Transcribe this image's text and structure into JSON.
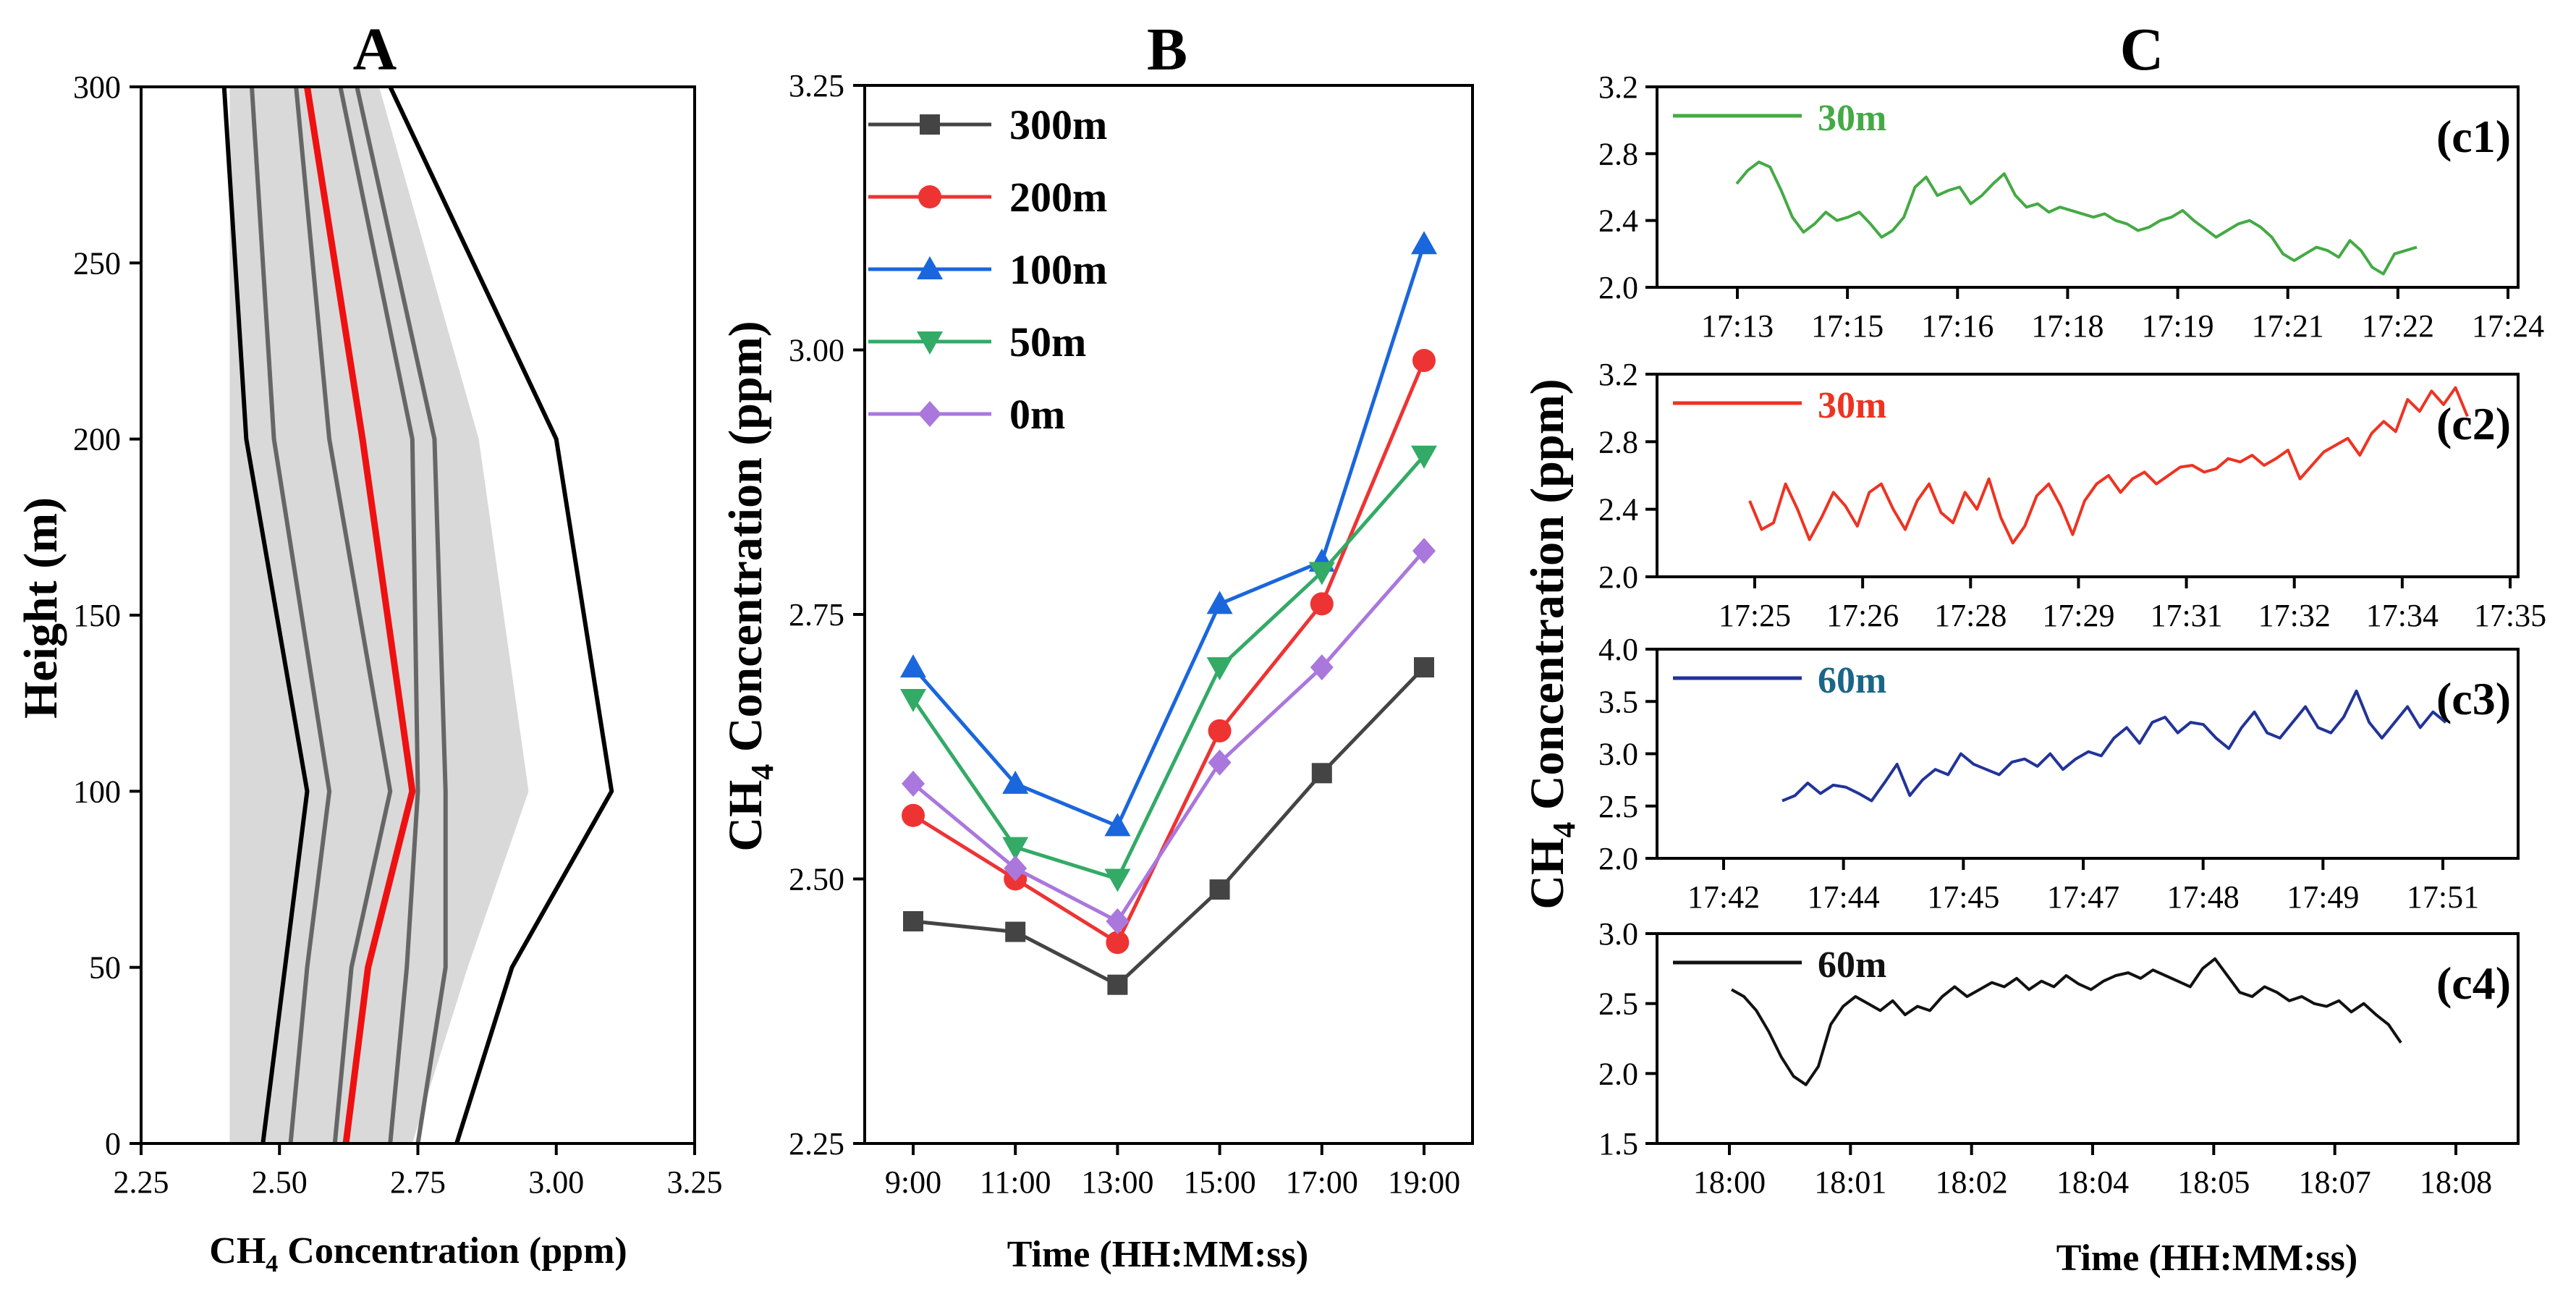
{
  "colors": {
    "red": "#ee1111",
    "dark": "#444444",
    "gray_line": "#666666",
    "band": "#d9d9d9",
    "s300": "#444444",
    "s200": "#ee3333",
    "s100": "#1a66dd",
    "s50": "#33aa66",
    "s0": "#aa77dd",
    "c1": "#44aa44",
    "c2": "#ee3322",
    "c3": "#223399",
    "c4": "#111111",
    "c3_tag": "#1a6688"
  },
  "chart_data": [
    {
      "id": "A",
      "type": "line",
      "panel_label": "A",
      "xlabel_main": "CH",
      "xlabel_sub": "4",
      "xlabel_rest": " Concentration (ppm)",
      "ylabel": "Height (m)",
      "xlim": [
        2.25,
        3.25
      ],
      "ylim": [
        0,
        300
      ],
      "x_ticks": [
        "2.25",
        "2.50",
        "2.75",
        "3.00",
        "3.25"
      ],
      "y_ticks": [
        "0",
        "50",
        "100",
        "150",
        "200",
        "250",
        "300"
      ],
      "heights": [
        0,
        50,
        100,
        200,
        300
      ],
      "band": {
        "left": [
          2.41,
          2.41,
          2.41,
          2.41,
          2.41
        ],
        "right": [
          2.74,
          2.84,
          2.95,
          2.86,
          2.68
        ]
      },
      "series": [
        {
          "name": "outer-left",
          "color": "#000000",
          "values": [
            2.47,
            2.51,
            2.55,
            2.44,
            2.4
          ]
        },
        {
          "name": "inner-1",
          "color": "#666666",
          "values": [
            2.52,
            2.55,
            2.59,
            2.49,
            2.45
          ]
        },
        {
          "name": "inner-2",
          "color": "#666666",
          "values": [
            2.6,
            2.63,
            2.7,
            2.59,
            2.53
          ]
        },
        {
          "name": "mean",
          "color": "#ee1111",
          "values": [
            2.62,
            2.66,
            2.74,
            2.65,
            2.55
          ]
        },
        {
          "name": "inner-3",
          "color": "#666666",
          "values": [
            2.7,
            2.73,
            2.75,
            2.74,
            2.61
          ]
        },
        {
          "name": "inner-4",
          "color": "#666666",
          "values": [
            2.75,
            2.8,
            2.8,
            2.78,
            2.64
          ]
        },
        {
          "name": "outer-right",
          "color": "#000000",
          "values": [
            2.82,
            2.92,
            3.1,
            3.0,
            2.7
          ]
        }
      ]
    },
    {
      "id": "B",
      "type": "line",
      "panel_label": "B",
      "xlabel": "Time (HH:MM:ss)",
      "ylabel_main": "CH",
      "ylabel_sub": "4",
      "ylabel_rest": " Concentration (ppm)",
      "categories": [
        "9:00",
        "11:00",
        "13:00",
        "15:00",
        "17:00",
        "19:00"
      ],
      "ylim": [
        2.25,
        3.25
      ],
      "y_ticks": [
        "2.25",
        "2.50",
        "2.75",
        "3.00",
        "3.25"
      ],
      "series": [
        {
          "name": "300m",
          "marker": "square",
          "color": "#444444",
          "values": [
            2.46,
            2.45,
            2.4,
            2.49,
            2.6,
            2.7
          ]
        },
        {
          "name": "200m",
          "marker": "circle",
          "color": "#ee3333",
          "values": [
            2.56,
            2.5,
            2.44,
            2.64,
            2.76,
            2.99
          ]
        },
        {
          "name": "100m",
          "marker": "triangle-up",
          "color": "#1a66dd",
          "values": [
            2.7,
            2.59,
            2.55,
            2.76,
            2.8,
            3.1
          ]
        },
        {
          "name": "50m",
          "marker": "triangle-down",
          "color": "#33aa66",
          "values": [
            2.67,
            2.53,
            2.5,
            2.7,
            2.79,
            2.9
          ]
        },
        {
          "name": "0m",
          "marker": "diamond",
          "color": "#aa77dd",
          "values": [
            2.59,
            2.51,
            2.46,
            2.61,
            2.7,
            2.81
          ]
        }
      ]
    },
    {
      "id": "c1",
      "type": "line",
      "tag": "(c1)",
      "legend": "30m",
      "color": "#44aa44",
      "x_ticks": [
        "17:13",
        "17:15",
        "17:16",
        "17:18",
        "17:19",
        "17:21",
        "17:22",
        "17:24"
      ],
      "ylim": [
        2.0,
        3.2
      ],
      "y_ticks": [
        "2.0",
        "2.4",
        "2.8",
        "3.2"
      ],
      "values": [
        2.62,
        2.7,
        2.75,
        2.72,
        2.58,
        2.42,
        2.33,
        2.38,
        2.45,
        2.4,
        2.42,
        2.45,
        2.38,
        2.3,
        2.34,
        2.42,
        2.6,
        2.66,
        2.55,
        2.58,
        2.6,
        2.5,
        2.55,
        2.62,
        2.68,
        2.55,
        2.48,
        2.5,
        2.45,
        2.48,
        2.46,
        2.44,
        2.42,
        2.44,
        2.4,
        2.38,
        2.34,
        2.36,
        2.4,
        2.42,
        2.46,
        2.4,
        2.35,
        2.3,
        2.34,
        2.38,
        2.4,
        2.36,
        2.3,
        2.2,
        2.16,
        2.2,
        2.24,
        2.22,
        2.18,
        2.28,
        2.22,
        2.12,
        2.08,
        2.2,
        2.22,
        2.24
      ]
    },
    {
      "id": "c2",
      "type": "line",
      "tag": "(c2)",
      "legend": "30m",
      "color": "#ee3322",
      "x_ticks": [
        "17:25",
        "17:26",
        "17:28",
        "17:29",
        "17:31",
        "17:32",
        "17:34",
        "17:35"
      ],
      "ylim": [
        2.0,
        3.2
      ],
      "y_ticks": [
        "2.0",
        "2.4",
        "2.8",
        "3.2"
      ],
      "values": [
        2.45,
        2.28,
        2.32,
        2.55,
        2.4,
        2.22,
        2.35,
        2.5,
        2.42,
        2.3,
        2.5,
        2.55,
        2.4,
        2.28,
        2.45,
        2.55,
        2.38,
        2.32,
        2.5,
        2.4,
        2.58,
        2.35,
        2.2,
        2.3,
        2.48,
        2.55,
        2.42,
        2.25,
        2.45,
        2.55,
        2.6,
        2.5,
        2.58,
        2.62,
        2.55,
        2.6,
        2.65,
        2.66,
        2.62,
        2.64,
        2.7,
        2.68,
        2.72,
        2.66,
        2.7,
        2.75,
        2.58,
        2.66,
        2.74,
        2.78,
        2.82,
        2.72,
        2.85,
        2.92,
        2.86,
        3.05,
        2.98,
        3.1,
        3.02,
        3.12,
        2.95
      ]
    },
    {
      "id": "c3",
      "type": "line",
      "tag": "(c3)",
      "legend": "60m",
      "color": "#223399",
      "x_ticks": [
        "17:42",
        "17:44",
        "17:45",
        "17:47",
        "17:48",
        "17:49",
        "17:51"
      ],
      "ylim": [
        2.0,
        4.0
      ],
      "y_ticks": [
        "2.0",
        "2.5",
        "3.0",
        "3.5",
        "4.0"
      ],
      "values": [
        2.55,
        2.6,
        2.72,
        2.62,
        2.7,
        2.68,
        2.62,
        2.55,
        2.72,
        2.9,
        2.6,
        2.75,
        2.85,
        2.8,
        3.0,
        2.9,
        2.85,
        2.8,
        2.92,
        2.95,
        2.88,
        3.0,
        2.85,
        2.95,
        3.02,
        2.98,
        3.15,
        3.25,
        3.1,
        3.3,
        3.35,
        3.2,
        3.3,
        3.28,
        3.15,
        3.05,
        3.25,
        3.4,
        3.2,
        3.15,
        3.3,
        3.45,
        3.25,
        3.2,
        3.35,
        3.6,
        3.3,
        3.15,
        3.3,
        3.45,
        3.25,
        3.4,
        3.3
      ]
    },
    {
      "id": "c4",
      "type": "line",
      "tag": "(c4)",
      "legend": "60m",
      "color": "#111111",
      "x_ticks": [
        "18:00",
        "18:01",
        "18:02",
        "18:04",
        "18:05",
        "18:07",
        "18:08"
      ],
      "ylim": [
        1.5,
        3.0
      ],
      "y_ticks": [
        "1.5",
        "2.0",
        "2.5",
        "3.0"
      ],
      "values": [
        2.6,
        2.55,
        2.45,
        2.3,
        2.12,
        1.98,
        1.92,
        2.05,
        2.35,
        2.48,
        2.55,
        2.5,
        2.45,
        2.52,
        2.42,
        2.48,
        2.45,
        2.55,
        2.62,
        2.55,
        2.6,
        2.65,
        2.62,
        2.68,
        2.6,
        2.66,
        2.62,
        2.7,
        2.64,
        2.6,
        2.66,
        2.7,
        2.72,
        2.68,
        2.74,
        2.7,
        2.66,
        2.62,
        2.75,
        2.82,
        2.7,
        2.58,
        2.55,
        2.62,
        2.58,
        2.52,
        2.55,
        2.5,
        2.48,
        2.52,
        2.44,
        2.5,
        2.42,
        2.35,
        2.22
      ]
    }
  ],
  "panel_c": {
    "label": "C",
    "ylabel_main": "CH",
    "ylabel_sub": "4",
    "ylabel_rest": " Concentration (ppm)",
    "xlabel": "Time (HH:MM:ss)"
  }
}
